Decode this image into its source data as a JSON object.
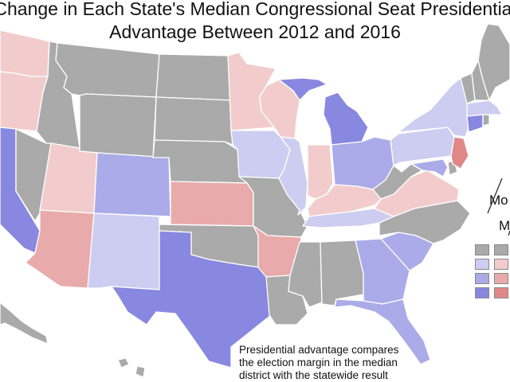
{
  "title": {
    "line1": "Change in Each State's Median Congressional Seat Presidential",
    "line2": "Advantage Between 2012 and 2016"
  },
  "legend": {
    "label_a": "Mo",
    "label_b": "Mo"
  },
  "note": {
    "line1": "Presidential advantage compares",
    "line2": "the election margin in the median",
    "line3": "district with the statewide result"
  },
  "colors": {
    "gray": "#aaaaaa",
    "blue_light": "#cccdf0",
    "blue_mid": "#aaabe8",
    "blue_strong": "#8888e0",
    "red_light": "#f2cccc",
    "red_mid": "#e8aaaa",
    "red_strong": "#e08888",
    "background": "#ffffff"
  }
}
